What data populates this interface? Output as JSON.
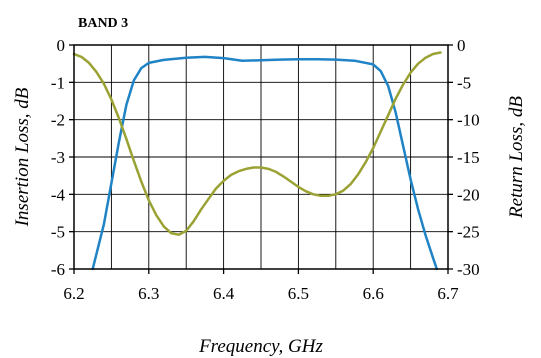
{
  "chart_data": {
    "type": "line",
    "title": "BAND 3",
    "xlabel": "Frequency, GHz",
    "ylabel_left": "Insertion Loss, dB",
    "ylabel_right": "Return Loss, dB",
    "xlim": [
      6.2,
      6.7
    ],
    "ylim_left": [
      -6,
      0
    ],
    "ylim_right": [
      -30,
      0
    ],
    "x_ticks": [
      "6.2",
      "6.3",
      "6.4",
      "6.5",
      "6.6",
      "6.7"
    ],
    "y_ticks_left": [
      "0",
      "-1",
      "-2",
      "-3",
      "-4",
      "-5",
      "-6"
    ],
    "y_ticks_right": [
      "0",
      "-5",
      "-10",
      "-15",
      "-20",
      "-25",
      "-30"
    ],
    "x_gridlines": [
      6.25,
      6.3,
      6.35,
      6.4,
      6.45,
      6.5,
      6.55,
      6.6,
      6.65
    ],
    "y_gridlines_left": [
      -1,
      -2,
      -3,
      -4,
      -5
    ],
    "series": [
      {
        "axis": "left",
        "color": "#1f83c6",
        "x": [
          6.225,
          6.24,
          6.25,
          6.26,
          6.27,
          6.28,
          6.29,
          6.3,
          6.32,
          6.35,
          6.375,
          6.4,
          6.425,
          6.45,
          6.475,
          6.5,
          6.525,
          6.55,
          6.575,
          6.6,
          6.61,
          6.62,
          6.63,
          6.64,
          6.65,
          6.66,
          6.67,
          6.68,
          6.685
        ],
        "y": [
          -6,
          -4.8,
          -3.7,
          -2.6,
          -1.6,
          -0.95,
          -0.62,
          -0.48,
          -0.4,
          -0.34,
          -0.32,
          -0.35,
          -0.42,
          -0.41,
          -0.39,
          -0.38,
          -0.38,
          -0.39,
          -0.42,
          -0.52,
          -0.7,
          -1.1,
          -1.8,
          -2.7,
          -3.6,
          -4.4,
          -5.1,
          -5.7,
          -6
        ]
      },
      {
        "axis": "right",
        "color": "#9aa233",
        "x": [
          6.2,
          6.21,
          6.22,
          6.23,
          6.24,
          6.25,
          6.26,
          6.27,
          6.28,
          6.29,
          6.3,
          6.31,
          6.32,
          6.33,
          6.34,
          6.35,
          6.36,
          6.37,
          6.38,
          6.39,
          6.4,
          6.41,
          6.42,
          6.43,
          6.44,
          6.45,
          6.46,
          6.47,
          6.48,
          6.49,
          6.5,
          6.51,
          6.52,
          6.53,
          6.54,
          6.55,
          6.56,
          6.57,
          6.58,
          6.59,
          6.6,
          6.61,
          6.62,
          6.63,
          6.64,
          6.65,
          6.66,
          6.67,
          6.68,
          6.69
        ],
        "y": [
          -1.2,
          -1.6,
          -2.4,
          -3.6,
          -5.2,
          -7.3,
          -9.8,
          -12.6,
          -15.5,
          -18.3,
          -20.8,
          -22.8,
          -24.3,
          -25.2,
          -25.4,
          -24.9,
          -23.6,
          -22.0,
          -20.6,
          -19.2,
          -18.2,
          -17.4,
          -16.9,
          -16.6,
          -16.4,
          -16.4,
          -16.6,
          -17.0,
          -17.6,
          -18.3,
          -19.0,
          -19.6,
          -20.0,
          -20.2,
          -20.2,
          -20.0,
          -19.5,
          -18.6,
          -17.3,
          -15.7,
          -13.8,
          -11.6,
          -9.4,
          -7.2,
          -5.3,
          -3.7,
          -2.5,
          -1.7,
          -1.2,
          -1.0
        ]
      }
    ]
  }
}
